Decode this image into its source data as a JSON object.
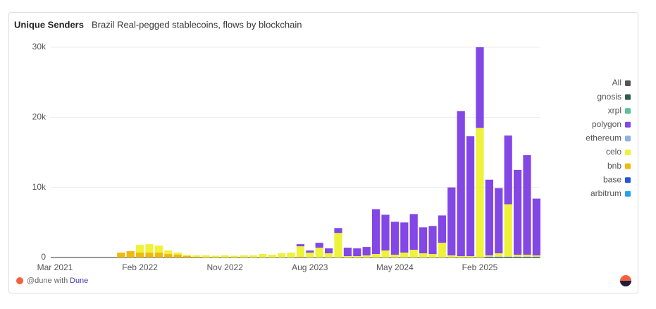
{
  "chart_data": {
    "type": "stacked_bar",
    "title": "Unique Senders",
    "subtitle": "Brazil Real-pegged stablecoins, flows by blockchain",
    "categories": [
      "Mar 2021",
      null,
      null,
      null,
      null,
      null,
      null,
      null,
      null,
      "Feb 2022",
      null,
      null,
      null,
      null,
      null,
      null,
      null,
      null,
      "Nov 2022",
      null,
      null,
      null,
      null,
      null,
      null,
      null,
      null,
      "Aug 2023",
      null,
      null,
      null,
      null,
      null,
      null,
      null,
      null,
      "May 2024",
      null,
      null,
      null,
      null,
      null,
      null,
      null,
      null,
      "Feb 2025",
      null,
      null,
      null,
      null,
      null,
      null
    ],
    "ylim": [
      0,
      30000
    ],
    "yticks": [
      0,
      {
        "value": 10000,
        "label": "10k"
      },
      {
        "value": 20000,
        "label": "20k"
      },
      {
        "value": 30000,
        "label": "30k"
      }
    ],
    "grid": true,
    "legend": "right",
    "series": [
      {
        "name": "All",
        "color": "#555555",
        "values": [
          0,
          0,
          0,
          0,
          0,
          0,
          0,
          0,
          0,
          0,
          0,
          0,
          0,
          0,
          0,
          0,
          0,
          0,
          0,
          0,
          0,
          0,
          0,
          0,
          0,
          0,
          0,
          0,
          0,
          0,
          0,
          0,
          0,
          0,
          0,
          0,
          0,
          0,
          0,
          0,
          0,
          0,
          0,
          0,
          0,
          0,
          0,
          0,
          0,
          0,
          0,
          0
        ]
      },
      {
        "name": "gnosis",
        "color": "#2f5c4b",
        "values": [
          0,
          0,
          0,
          0,
          0,
          0,
          0,
          0,
          0,
          0,
          0,
          0,
          0,
          0,
          0,
          0,
          0,
          0,
          0,
          0,
          0,
          0,
          0,
          0,
          0,
          0,
          0,
          0,
          0,
          0,
          0,
          0,
          0,
          0,
          0,
          0,
          0,
          0,
          0,
          0,
          0,
          0,
          0,
          0,
          0,
          0,
          0,
          0,
          0,
          0,
          0,
          0
        ]
      },
      {
        "name": "xrpl",
        "color": "#5cc09b",
        "values": [
          0,
          0,
          0,
          0,
          0,
          0,
          0,
          0,
          0,
          0,
          0,
          0,
          0,
          0,
          0,
          0,
          0,
          0,
          0,
          0,
          0,
          0,
          0,
          0,
          0,
          0,
          0,
          0,
          0,
          0,
          0,
          0,
          0,
          0,
          0,
          0,
          0,
          0,
          0,
          0,
          0,
          0,
          0,
          0,
          0,
          0,
          0,
          0,
          0,
          0,
          0,
          0
        ]
      },
      {
        "name": "polygon",
        "color": "#8247e5",
        "values": [
          0,
          0,
          0,
          0,
          0,
          0,
          0,
          0,
          0,
          0,
          0,
          0,
          0,
          0,
          0,
          0,
          0,
          0,
          0,
          0,
          0,
          0,
          0,
          0,
          0,
          0,
          300,
          300,
          700,
          700,
          700,
          1200,
          1100,
          1200,
          6400,
          5100,
          4700,
          4300,
          5100,
          3700,
          4000,
          3900,
          9700,
          20700,
          17100,
          11500,
          10800,
          9300,
          9800,
          12100,
          14200,
          8100
        ]
      },
      {
        "name": "ethereum",
        "color": "#8fb0e8",
        "values": [
          0,
          0,
          0,
          0,
          0,
          0,
          0,
          0,
          0,
          0,
          0,
          0,
          0,
          0,
          0,
          0,
          0,
          0,
          0,
          0,
          0,
          0,
          0,
          0,
          0,
          0,
          0,
          0,
          0,
          0,
          0,
          0,
          0,
          0,
          0,
          0,
          0,
          0,
          0,
          0,
          0,
          0,
          0,
          0,
          0,
          0,
          0,
          0,
          0,
          0,
          0,
          0
        ]
      },
      {
        "name": "celo",
        "color": "#eef23a",
        "values": [
          0,
          0,
          0,
          0,
          0,
          0,
          0,
          0,
          0,
          1100,
          1200,
          1000,
          500,
          300,
          200,
          200,
          300,
          250,
          300,
          250,
          300,
          300,
          500,
          400,
          600,
          700,
          1500,
          700,
          1400,
          600,
          3500,
          200,
          200,
          300,
          500,
          1000,
          400,
          700,
          1100,
          600,
          500,
          2100,
          300,
          200,
          200,
          18500,
          200,
          500,
          7500,
          300,
          300,
          200
        ]
      },
      {
        "name": "bnb",
        "color": "#f0b90b",
        "values": [
          0,
          0,
          0,
          0,
          0,
          0,
          0,
          700,
          900,
          700,
          700,
          700,
          500,
          400,
          200,
          100,
          0,
          0,
          0,
          0,
          0,
          0,
          0,
          0,
          0,
          0,
          100,
          0,
          0,
          0,
          0,
          0,
          0,
          0,
          0,
          0,
          0,
          0,
          0,
          0,
          0,
          0,
          0,
          0,
          0,
          0,
          0,
          0,
          0,
          0,
          0,
          0
        ]
      },
      {
        "name": "base",
        "color": "#2456d6",
        "values": [
          0,
          0,
          0,
          0,
          0,
          0,
          0,
          0,
          0,
          0,
          0,
          0,
          0,
          0,
          0,
          0,
          0,
          0,
          0,
          0,
          0,
          0,
          0,
          0,
          0,
          0,
          0,
          0,
          0,
          0,
          0,
          0,
          0,
          0,
          0,
          0,
          0,
          0,
          0,
          0,
          0,
          0,
          0,
          0,
          0,
          0,
          100,
          100,
          100,
          100,
          100,
          100
        ]
      },
      {
        "name": "arbitrum",
        "color": "#28a0f0",
        "values": [
          0,
          0,
          0,
          0,
          0,
          0,
          0,
          0,
          0,
          0,
          0,
          0,
          0,
          0,
          0,
          0,
          0,
          0,
          0,
          0,
          0,
          0,
          0,
          0,
          0,
          0,
          0,
          0,
          0,
          0,
          0,
          0,
          0,
          0,
          0,
          0,
          0,
          0,
          0,
          0,
          0,
          0,
          0,
          0,
          0,
          0,
          0,
          0,
          0,
          0,
          0,
          0
        ]
      }
    ]
  },
  "footer": {
    "prefix": "@dune with",
    "link": "Dune"
  }
}
